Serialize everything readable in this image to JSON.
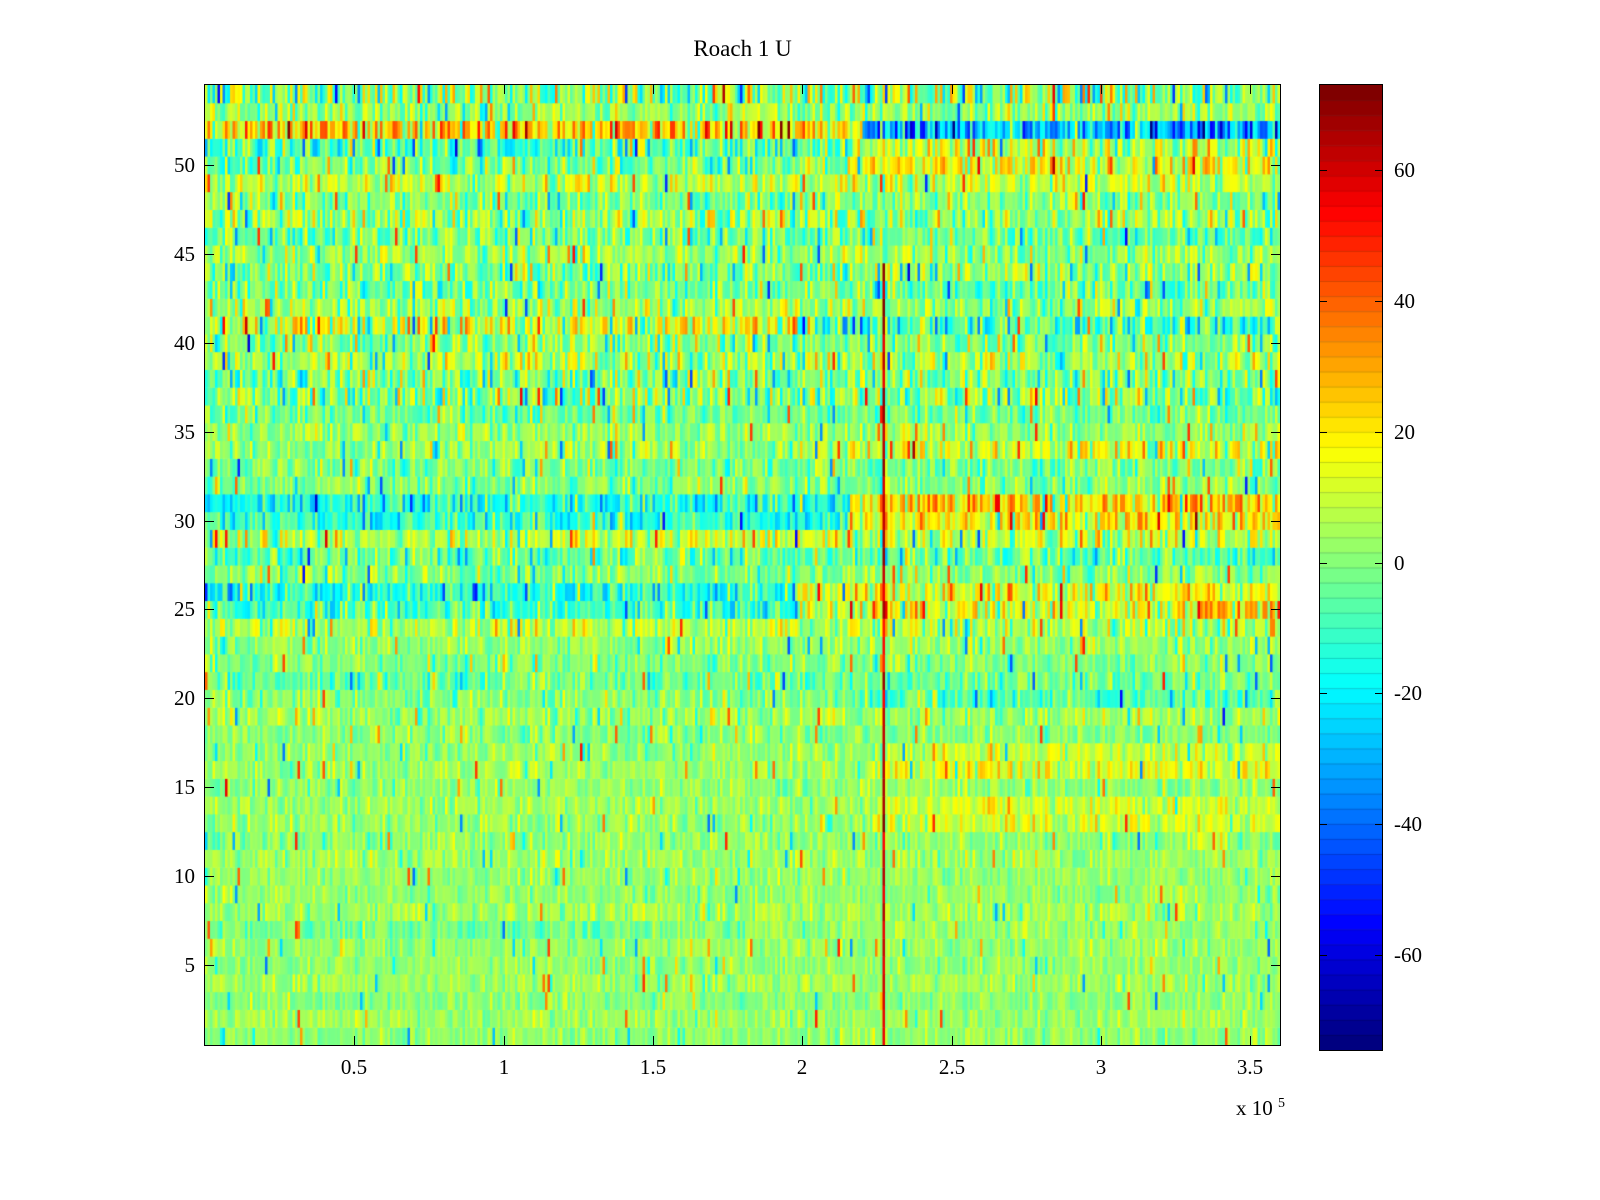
{
  "chart_data": {
    "type": "heatmap",
    "title": "Roach 1 U",
    "colormap": "jet",
    "grid": false,
    "x_axis": {
      "min": 0,
      "max": 360000,
      "ticks": [
        {
          "value": 50000,
          "label": "0.5"
        },
        {
          "value": 100000,
          "label": "1"
        },
        {
          "value": 150000,
          "label": "1.5"
        },
        {
          "value": 200000,
          "label": "2"
        },
        {
          "value": 250000,
          "label": "2.5"
        },
        {
          "value": 300000,
          "label": "3"
        },
        {
          "value": 350000,
          "label": "3.5"
        }
      ],
      "exponent_prefix": "x 10",
      "exponent_power": "5"
    },
    "y_axis": {
      "min": 0.5,
      "max": 54.5,
      "ticks": [
        5,
        10,
        15,
        20,
        25,
        30,
        35,
        40,
        45,
        50
      ]
    },
    "colorbar": {
      "clim": [
        -74.5,
        73
      ],
      "ticks": [
        60,
        40,
        20,
        0,
        -20,
        -40,
        -60
      ],
      "segments": 64
    },
    "n_rows": 54,
    "n_cols": 430,
    "seed": 42,
    "spike_base": 0.015,
    "spike_scale": 0.004,
    "spike_amplitude": 28,
    "vertical_line": {
      "x_frac": 0.6306,
      "value": 62,
      "jitter": 6,
      "row_from": 1,
      "row_to": 44
    },
    "rows": [
      {
        "row": 1,
        "base": 2,
        "noise": 5
      },
      {
        "row": 2,
        "base": 3,
        "noise": 5
      },
      {
        "row": 3,
        "base": 1,
        "noise": 5
      },
      {
        "row": 4,
        "base": 4,
        "noise": 5
      },
      {
        "row": 5,
        "base": 2,
        "noise": 5
      },
      {
        "row": 6,
        "base": 3,
        "noise": 5
      },
      {
        "row": 7,
        "segments": [
          [
            0,
            0.5,
            -3,
            6
          ],
          [
            0.5,
            1,
            3,
            5
          ]
        ]
      },
      {
        "row": 8,
        "base": 4,
        "noise": 6
      },
      {
        "row": 9,
        "base": 2,
        "noise": 5
      },
      {
        "row": 10,
        "base": 3,
        "noise": 5
      },
      {
        "row": 11,
        "base": 4,
        "noise": 6
      },
      {
        "row": 12,
        "base": 2,
        "noise": 6
      },
      {
        "row": 13,
        "segments": [
          [
            0,
            0.62,
            3,
            6
          ],
          [
            0.62,
            1,
            11,
            7
          ]
        ]
      },
      {
        "row": 14,
        "segments": [
          [
            0,
            0.62,
            4,
            6
          ],
          [
            0.62,
            1,
            10,
            7
          ]
        ]
      },
      {
        "row": 15,
        "base": 2,
        "noise": 6
      },
      {
        "row": 16,
        "segments": [
          [
            0,
            0.62,
            3,
            6
          ],
          [
            0.62,
            1,
            12,
            8
          ]
        ]
      },
      {
        "row": 17,
        "segments": [
          [
            0,
            0.62,
            2,
            6
          ],
          [
            0.62,
            1,
            10,
            8
          ]
        ]
      },
      {
        "row": 18,
        "base": 0,
        "noise": 6
      },
      {
        "row": 19,
        "base": 3,
        "noise": 7
      },
      {
        "row": 20,
        "segments": [
          [
            0,
            0.6,
            0,
            7
          ],
          [
            0.6,
            1,
            -8,
            9
          ]
        ]
      },
      {
        "row": 21,
        "base": -3,
        "noise": 8
      },
      {
        "row": 22,
        "base": 0,
        "noise": 7
      },
      {
        "row": 23,
        "base": 2,
        "noise": 7
      },
      {
        "row": 24,
        "base": 6,
        "noise": 10
      },
      {
        "row": 25,
        "segments": [
          [
            0,
            0.55,
            -10,
            10
          ],
          [
            0.55,
            0.9,
            12,
            12
          ],
          [
            0.9,
            1,
            25,
            14
          ]
        ]
      },
      {
        "row": 26,
        "segments": [
          [
            0,
            0.55,
            -14,
            10
          ],
          [
            0.55,
            1,
            15,
            12
          ]
        ]
      },
      {
        "row": 27,
        "base": 0,
        "noise": 8
      },
      {
        "row": 28,
        "base": -5,
        "noise": 10
      },
      {
        "row": 29,
        "base": 8,
        "noise": 12
      },
      {
        "row": 30,
        "segments": [
          [
            0,
            0.6,
            -12,
            10
          ],
          [
            0.6,
            1,
            18,
            12
          ]
        ]
      },
      {
        "row": 31,
        "segments": [
          [
            0,
            0.6,
            -15,
            10
          ],
          [
            0.6,
            1,
            22,
            14
          ]
        ]
      },
      {
        "row": 32,
        "base": 0,
        "noise": 8
      },
      {
        "row": 33,
        "base": -2,
        "noise": 8
      },
      {
        "row": 34,
        "segments": [
          [
            0,
            0.55,
            2,
            8
          ],
          [
            0.55,
            1,
            10,
            12
          ]
        ]
      },
      {
        "row": 35,
        "base": 2,
        "noise": 8
      },
      {
        "row": 36,
        "base": -3,
        "noise": 8
      },
      {
        "row": 37,
        "base": 0,
        "noise": 14
      },
      {
        "row": 38,
        "base": -2,
        "noise": 12
      },
      {
        "row": 39,
        "base": 5,
        "noise": 12
      },
      {
        "row": 40,
        "base": 0,
        "noise": 10
      },
      {
        "row": 41,
        "segments": [
          [
            0,
            0.55,
            12,
            14
          ],
          [
            0.55,
            1,
            -10,
            14
          ]
        ]
      },
      {
        "row": 42,
        "base": 3,
        "noise": 10
      },
      {
        "row": 43,
        "base": -3,
        "noise": 10
      },
      {
        "row": 44,
        "base": 0,
        "noise": 12
      },
      {
        "row": 45,
        "base": 2,
        "noise": 9
      },
      {
        "row": 46,
        "base": -2,
        "noise": 10
      },
      {
        "row": 47,
        "base": 3,
        "noise": 12
      },
      {
        "row": 48,
        "base": 0,
        "noise": 10
      },
      {
        "row": 49,
        "base": 8,
        "noise": 10
      },
      {
        "row": 50,
        "segments": [
          [
            0,
            0.6,
            -3,
            10
          ],
          [
            0.6,
            1,
            15,
            12
          ]
        ]
      },
      {
        "row": 51,
        "segments": [
          [
            0,
            0.6,
            -8,
            14
          ],
          [
            0.6,
            1,
            10,
            15
          ]
        ]
      },
      {
        "row": 52,
        "segments": [
          [
            0,
            0.61,
            25,
            15
          ],
          [
            0.61,
            1,
            -30,
            15
          ]
        ]
      },
      {
        "row": 53,
        "base": 2,
        "noise": 10
      },
      {
        "row": 54,
        "base": 0,
        "noise": 18
      }
    ]
  }
}
